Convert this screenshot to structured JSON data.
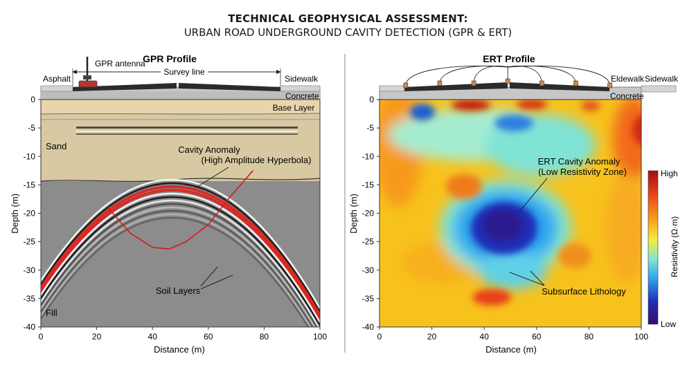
{
  "title": "TECHNICAL GEOPHYSICAL ASSESSMENT:",
  "subtitle": "URBAN ROAD UNDERGROUND CAVITY DETECTION (GPR & ERT)",
  "gpr": {
    "panel_title": "GPR Profile",
    "antenna_label": "GPR antenna",
    "survey_line_label": "Survey line",
    "asphalt_label": "Asphalt",
    "sidewalk_label": "Sidewalk",
    "concrete_label": "Concrete",
    "base_layer_label": "Base Layer",
    "sand_label": "Sand",
    "fill_label": "Fill",
    "cavity_label_1": "Cavity Anomaly",
    "cavity_label_2": "(High Amplitude Hyperbola)",
    "soil_label": "Soil Layers",
    "colors": {
      "sand": "#d9c9a3",
      "base": "#e8d5ad",
      "fill": "#8c8c8c",
      "hyperbola": "#e0201c"
    }
  },
  "ert": {
    "panel_title": "ERT Profile",
    "eldewalk_label": "Eldewalk",
    "sidewalk_label": "Sidewalk",
    "concrete_label": "Concrete",
    "anomaly_label_1": "ERT Cavity Anomaly",
    "anomaly_label_2": "(Low Resistivity Zone)",
    "lithology_label": "Subsurface Lithology",
    "colorbar_high": "High",
    "colorbar_low": "Low",
    "colorbar_title": "Resistivity (Ω·m)",
    "colors": [
      "#3a0a6e",
      "#1f2fb8",
      "#2fa6ee",
      "#7fe3d6",
      "#f2ee3a",
      "#f7a21c",
      "#e8411a",
      "#a30d0d"
    ]
  },
  "chart_data": [
    {
      "type": "heatmap",
      "title": "GPR Profile",
      "xlabel": "Distance (m)",
      "ylabel": "Depth (m)",
      "xlim": [
        0,
        100
      ],
      "ylim": [
        -40,
        0
      ],
      "xticks": [
        "0",
        "20",
        "40",
        "60",
        "80",
        "100"
      ],
      "yticks": [
        "0",
        "-5",
        "-10",
        "-15",
        "-20",
        "-25",
        "-30",
        "-35",
        "-40"
      ],
      "layers": [
        {
          "name": "Base Layer",
          "depth_top": 0,
          "depth_bottom": -2.5
        },
        {
          "name": "Sand",
          "depth_top": -2.5,
          "depth_bottom": -12.5
        },
        {
          "name": "Fill",
          "depth_top": -12.5,
          "depth_bottom": -40
        }
      ],
      "hyperbola_apex": {
        "x": 47,
        "y": -13.5
      },
      "cavity_trace": [
        [
          24,
          -19
        ],
        [
          32,
          -23.5
        ],
        [
          40,
          -26
        ],
        [
          46,
          -26.3
        ],
        [
          52,
          -25
        ],
        [
          60,
          -22
        ],
        [
          68,
          -17
        ],
        [
          76,
          -12.5
        ]
      ]
    },
    {
      "type": "heatmap",
      "title": "ERT Profile",
      "xlabel": "Distance (m)",
      "ylabel": "Depth (m)",
      "xlim": [
        0,
        100
      ],
      "ylim": [
        -40,
        0
      ],
      "xticks": [
        "0",
        "20",
        "40",
        "60",
        "80",
        "100"
      ],
      "yticks": [
        "0",
        "-5",
        "-10",
        "-15",
        "-20",
        "-25",
        "-30",
        "-35",
        "-40"
      ],
      "low_resistivity_center": {
        "x": 47,
        "y": -20
      },
      "electrode_x": [
        10,
        23,
        36,
        49,
        62,
        75,
        88
      ]
    }
  ]
}
